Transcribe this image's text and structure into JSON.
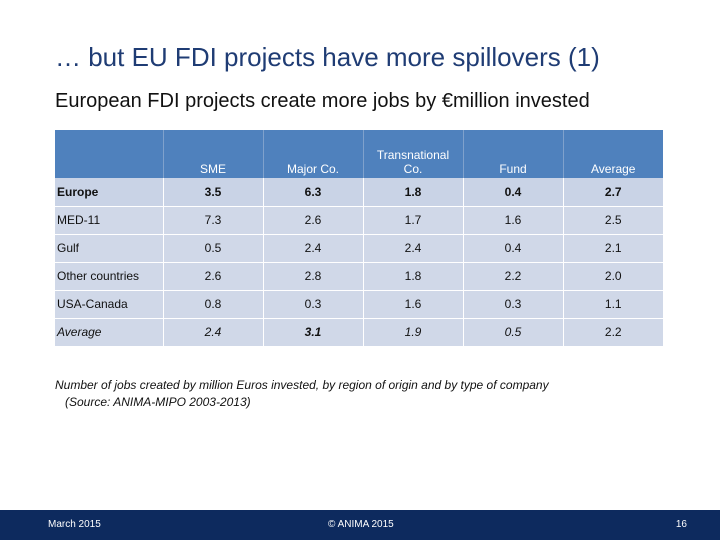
{
  "slide": {
    "title": "… but EU FDI projects have more spillovers (1)",
    "subtitle": "European FDI projects create more jobs by €million invested"
  },
  "table": {
    "headers": [
      "",
      "SME",
      "Major Co.",
      "Transnational Co.",
      "Fund",
      "Average"
    ],
    "rows": [
      {
        "region": "Europe",
        "values": [
          "3.5",
          "6.3",
          "1.8",
          "0.4",
          "2.7"
        ]
      },
      {
        "region": "MED-11",
        "values": [
          "7.3",
          "2.6",
          "1.7",
          "1.6",
          "2.5"
        ]
      },
      {
        "region": "Gulf",
        "values": [
          "0.5",
          "2.4",
          "2.4",
          "0.4",
          "2.1"
        ]
      },
      {
        "region": "Other countries",
        "values": [
          "2.6",
          "2.8",
          "1.8",
          "2.2",
          "2.0"
        ]
      },
      {
        "region": "USA-Canada",
        "values": [
          "0.8",
          "0.3",
          "1.6",
          "0.3",
          "1.1"
        ]
      },
      {
        "region": "Average",
        "values": [
          "2.4",
          "3.1",
          "1.9",
          "0.5",
          "2.2"
        ]
      }
    ]
  },
  "caption": {
    "line1": "Number of jobs created by million Euros invested, by region of origin and by type of company",
    "line2": "(Source: ANIMA-MIPO 2003-2013)"
  },
  "footer": {
    "date": "March 2015",
    "copyright": "© ANIMA 2015",
    "page": "16"
  },
  "colors": {
    "title": "#1f3c74",
    "header_bg": "#4f81bd",
    "cell_bg": "#d0d8e8",
    "footer_bg": "#0d2a5e"
  }
}
